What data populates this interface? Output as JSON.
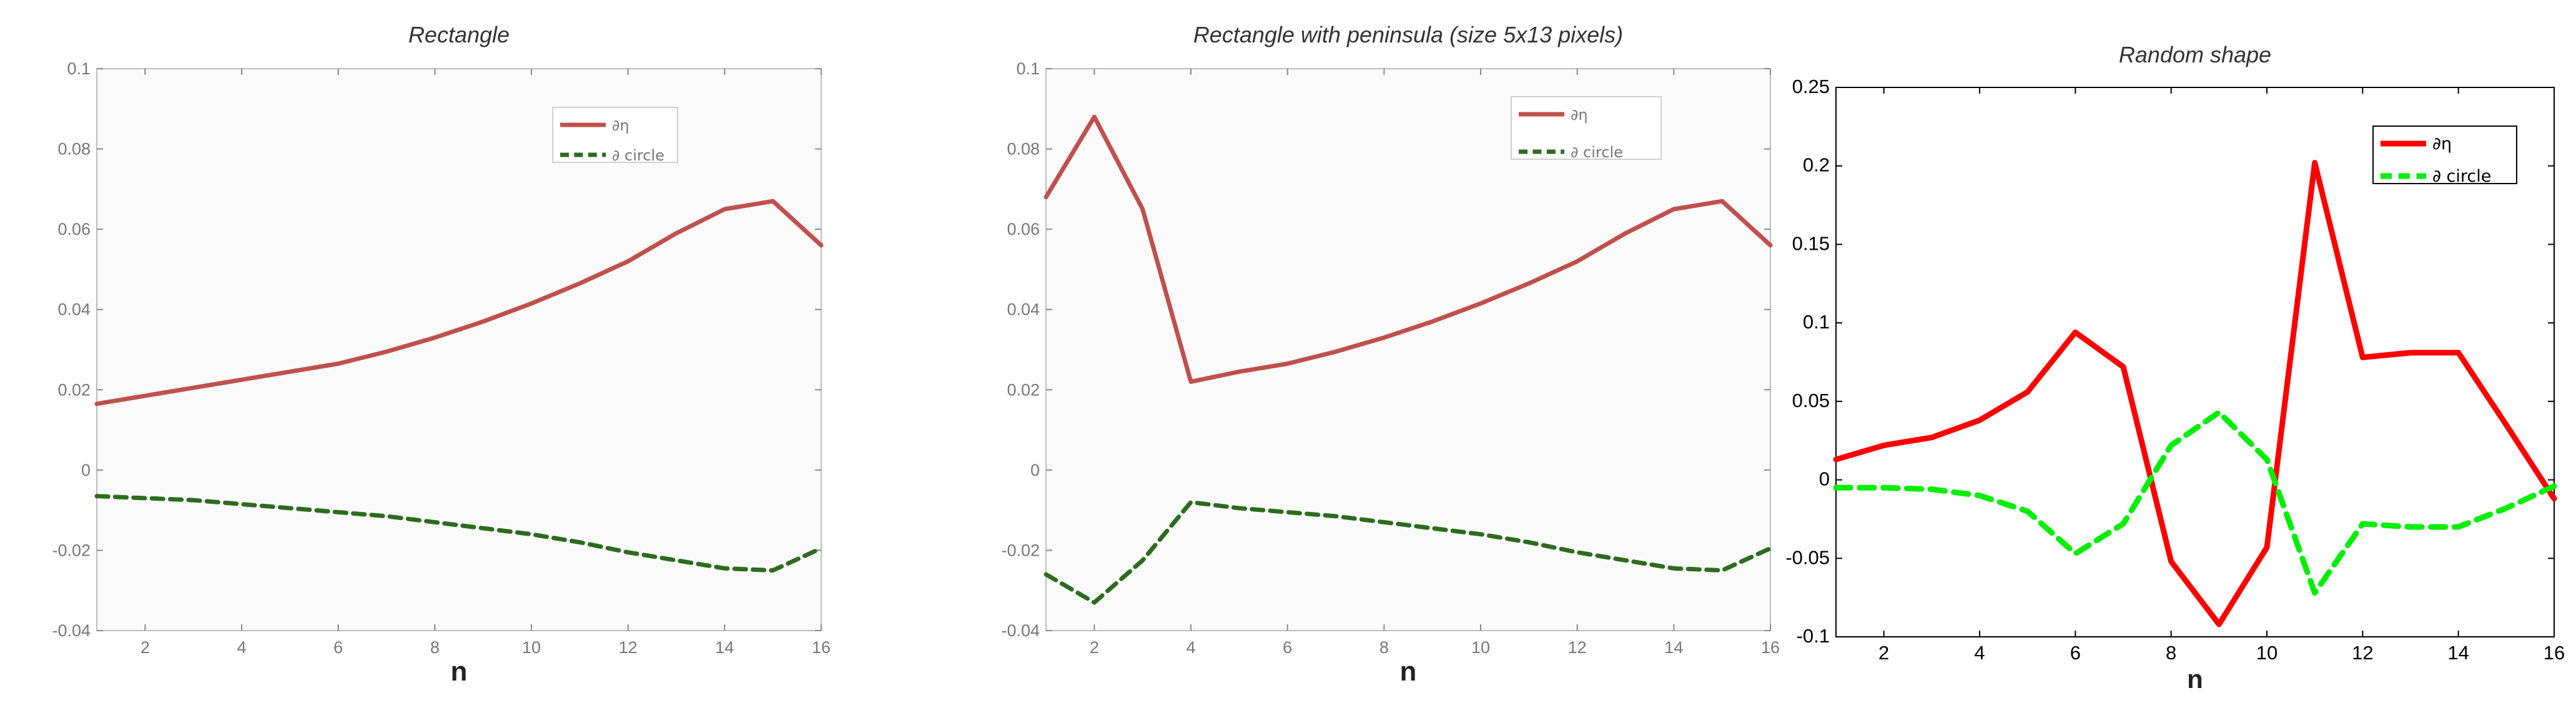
{
  "chart_data": [
    {
      "type": "line",
      "title": "Rectangle",
      "xlabel": "n",
      "ylabel": "",
      "xlim": [
        1,
        16
      ],
      "ylim": [
        -0.04,
        0.1
      ],
      "xticks": [
        2,
        4,
        6,
        8,
        10,
        12,
        14,
        16
      ],
      "yticks": [
        -0.04,
        -0.02,
        0,
        0.02,
        0.04,
        0.06,
        0.08,
        0.1
      ],
      "ytick_labels": [
        "-0.04",
        "-0.02",
        "0",
        "0.02",
        "0.04",
        "0.06",
        "0.08",
        "0.1"
      ],
      "grid": false,
      "legend_position": "top-right",
      "x": [
        1,
        2,
        3,
        4,
        5,
        6,
        7,
        8,
        9,
        10,
        11,
        12,
        13,
        14,
        15,
        16
      ],
      "series": [
        {
          "name": "∂η",
          "color": "#c0504d",
          "style": "solid",
          "values": [
            0.0165,
            0.0185,
            0.0205,
            0.0225,
            0.0245,
            0.0265,
            0.0295,
            0.033,
            0.037,
            0.0415,
            0.0465,
            0.052,
            0.059,
            0.065,
            0.067,
            0.056
          ]
        },
        {
          "name": "∂ circle",
          "color": "#2e6b1f",
          "style": "dashed",
          "values": [
            -0.0065,
            -0.007,
            -0.0075,
            -0.0085,
            -0.0095,
            -0.0105,
            -0.0115,
            -0.013,
            -0.0145,
            -0.016,
            -0.018,
            -0.0205,
            -0.0225,
            -0.0245,
            -0.025,
            -0.0195
          ]
        }
      ]
    },
    {
      "type": "line",
      "title": "Rectangle with peninsula (size 5x13 pixels)",
      "xlabel": "n",
      "ylabel": "",
      "xlim": [
        1,
        16
      ],
      "ylim": [
        -0.04,
        0.1
      ],
      "xticks": [
        2,
        4,
        6,
        8,
        10,
        12,
        14,
        16
      ],
      "yticks": [
        -0.04,
        -0.02,
        0,
        0.02,
        0.04,
        0.06,
        0.08,
        0.1
      ],
      "ytick_labels": [
        "-0.04",
        "-0.02",
        "0",
        "0.02",
        "0.04",
        "0.06",
        "0.08",
        "0.1"
      ],
      "grid": false,
      "legend_position": "top-right",
      "x": [
        1,
        2,
        3,
        4,
        5,
        6,
        7,
        8,
        9,
        10,
        11,
        12,
        13,
        14,
        15,
        16
      ],
      "series": [
        {
          "name": "∂η",
          "color": "#c0504d",
          "style": "solid",
          "values": [
            0.068,
            0.088,
            0.065,
            0.022,
            0.0245,
            0.0265,
            0.0295,
            0.033,
            0.037,
            0.0415,
            0.0465,
            0.052,
            0.059,
            0.065,
            0.067,
            0.056
          ]
        },
        {
          "name": "∂ circle",
          "color": "#2e6b1f",
          "style": "dashed",
          "values": [
            -0.026,
            -0.033,
            -0.0225,
            -0.008,
            -0.0095,
            -0.0105,
            -0.0115,
            -0.013,
            -0.0145,
            -0.016,
            -0.018,
            -0.0205,
            -0.0225,
            -0.0245,
            -0.025,
            -0.0195
          ]
        }
      ]
    },
    {
      "type": "line",
      "title": "Random shape",
      "xlabel": "n",
      "ylabel": "",
      "xlim": [
        1,
        16
      ],
      "ylim": [
        -0.1,
        0.25
      ],
      "xticks": [
        2,
        4,
        6,
        8,
        10,
        12,
        14,
        16
      ],
      "yticks": [
        -0.1,
        -0.05,
        0,
        0.05,
        0.1,
        0.15,
        0.2,
        0.25
      ],
      "ytick_labels": [
        "-0.1",
        "-0.05",
        "0",
        "0.05",
        "0.1",
        "0.15",
        "0.2",
        "0.25"
      ],
      "grid": false,
      "legend_position": "top-right",
      "x": [
        1,
        2,
        3,
        4,
        5,
        6,
        7,
        8,
        9,
        10,
        11,
        12,
        13,
        14,
        15,
        16
      ],
      "series": [
        {
          "name": "∂η",
          "color": "#ff0000",
          "style": "solid",
          "values": [
            0.013,
            0.022,
            0.027,
            0.038,
            0.056,
            0.094,
            0.072,
            -0.052,
            -0.092,
            -0.043,
            0.202,
            0.078,
            0.081,
            0.081,
            0.035,
            -0.012
          ]
        },
        {
          "name": "∂ circle",
          "color": "#00ee00",
          "style": "dashed",
          "values": [
            -0.005,
            -0.005,
            -0.006,
            -0.01,
            -0.02,
            -0.047,
            -0.028,
            0.022,
            0.043,
            0.013,
            -0.072,
            -0.028,
            -0.03,
            -0.03,
            -0.018,
            -0.004
          ]
        }
      ]
    }
  ]
}
